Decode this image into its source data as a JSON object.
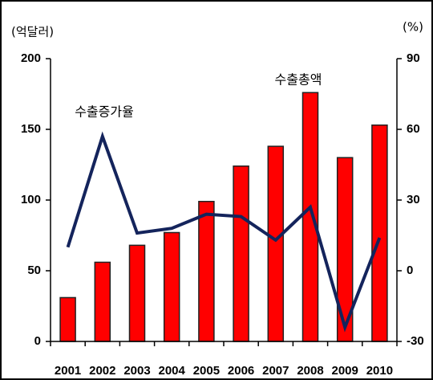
{
  "chart_data": {
    "type": "bar",
    "y_label": "(억달러)",
    "y2_label": "(%)",
    "categories": [
      "2001",
      "2002",
      "2003",
      "2004",
      "2005",
      "2006",
      "2007",
      "2008",
      "2009",
      "2010"
    ],
    "series": [
      {
        "name": "수출총액",
        "type": "bar",
        "color": "#ff0000",
        "values": [
          31,
          56,
          68,
          77,
          99,
          124,
          138,
          176,
          130,
          153
        ]
      },
      {
        "name": "수출증가율",
        "type": "line",
        "axis": "y2",
        "color": "#14245c",
        "values": [
          10,
          57,
          16,
          18,
          24,
          23,
          13,
          27,
          -24,
          14
        ]
      }
    ],
    "ylim": [
      0,
      200
    ],
    "yticks": [
      0,
      50,
      100,
      150,
      200
    ],
    "y2lim": [
      -30,
      90
    ],
    "y2ticks": [
      -30,
      0,
      30,
      60,
      90
    ]
  }
}
